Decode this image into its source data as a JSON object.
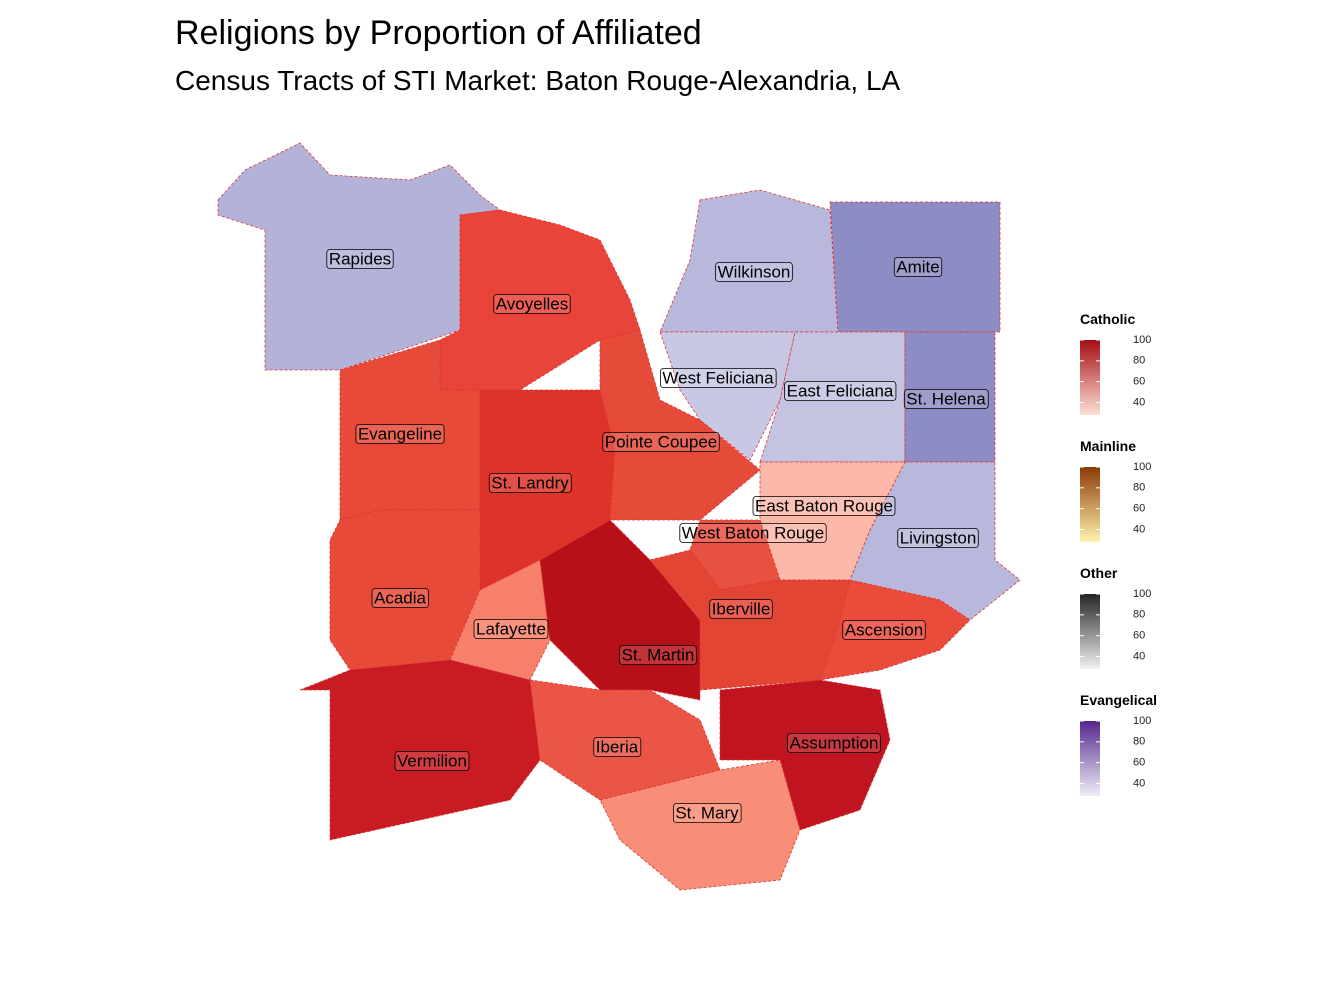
{
  "title": "Religions by Proportion of Affiliated",
  "subtitle": "Census Tracts of STI Market: Baton Rouge-Alexandria, LA",
  "parishes": [
    {
      "name": "Rapides",
      "color": "#b3b3da"
    },
    {
      "name": "Avoyelles",
      "color": "#e8443a"
    },
    {
      "name": "Wilkinson",
      "color": "#b8b8dc"
    },
    {
      "name": "Amite",
      "color": "#8e8cc4"
    },
    {
      "name": "West Feliciana",
      "color": "#c8c8e4"
    },
    {
      "name": "East Feliciana",
      "color": "#c4c4e2"
    },
    {
      "name": "St. Helena",
      "color": "#8e8cc4"
    },
    {
      "name": "Evangeline",
      "color": "#e84a3a"
    },
    {
      "name": "St. Landry",
      "color": "#dd3328"
    },
    {
      "name": "Pointe Coupee",
      "color": "#e64a38"
    },
    {
      "name": "East Baton Rouge",
      "color": "#fcb8a8"
    },
    {
      "name": "Livingston",
      "color": "#b8b8dc"
    },
    {
      "name": "West Baton Rouge",
      "color": "#e85040"
    },
    {
      "name": "Acadia",
      "color": "#e84a3a"
    },
    {
      "name": "Lafayette",
      "color": "#f7806a"
    },
    {
      "name": "St. Martin",
      "color": "#b81018"
    },
    {
      "name": "Iberville",
      "color": "#e34535"
    },
    {
      "name": "Ascension",
      "color": "#ea4c3c"
    },
    {
      "name": "Vermilion",
      "color": "#c81b22"
    },
    {
      "name": "Iberia",
      "color": "#ea5545"
    },
    {
      "name": "Assumption",
      "color": "#c01520"
    },
    {
      "name": "St. Mary",
      "color": "#f98e78"
    }
  ],
  "legends": [
    {
      "title": "Catholic",
      "colors": [
        "#fde0d6",
        "#a50f15"
      ],
      "lim": [
        28,
        100
      ],
      "ticks": [
        40,
        60,
        80,
        100
      ]
    },
    {
      "title": "Mainline",
      "colors": [
        "#fff3b0",
        "#8c3a04"
      ],
      "lim": [
        28,
        100
      ],
      "ticks": [
        40,
        60,
        80,
        100
      ]
    },
    {
      "title": "Other",
      "colors": [
        "#f2f2f2",
        "#252525"
      ],
      "lim": [
        28,
        100
      ],
      "ticks": [
        40,
        60,
        80,
        100
      ]
    },
    {
      "title": "Evangelical",
      "colors": [
        "#f0eef6",
        "#54278f"
      ],
      "lim": [
        28,
        100
      ],
      "ticks": [
        40,
        60,
        80,
        100
      ]
    }
  ]
}
